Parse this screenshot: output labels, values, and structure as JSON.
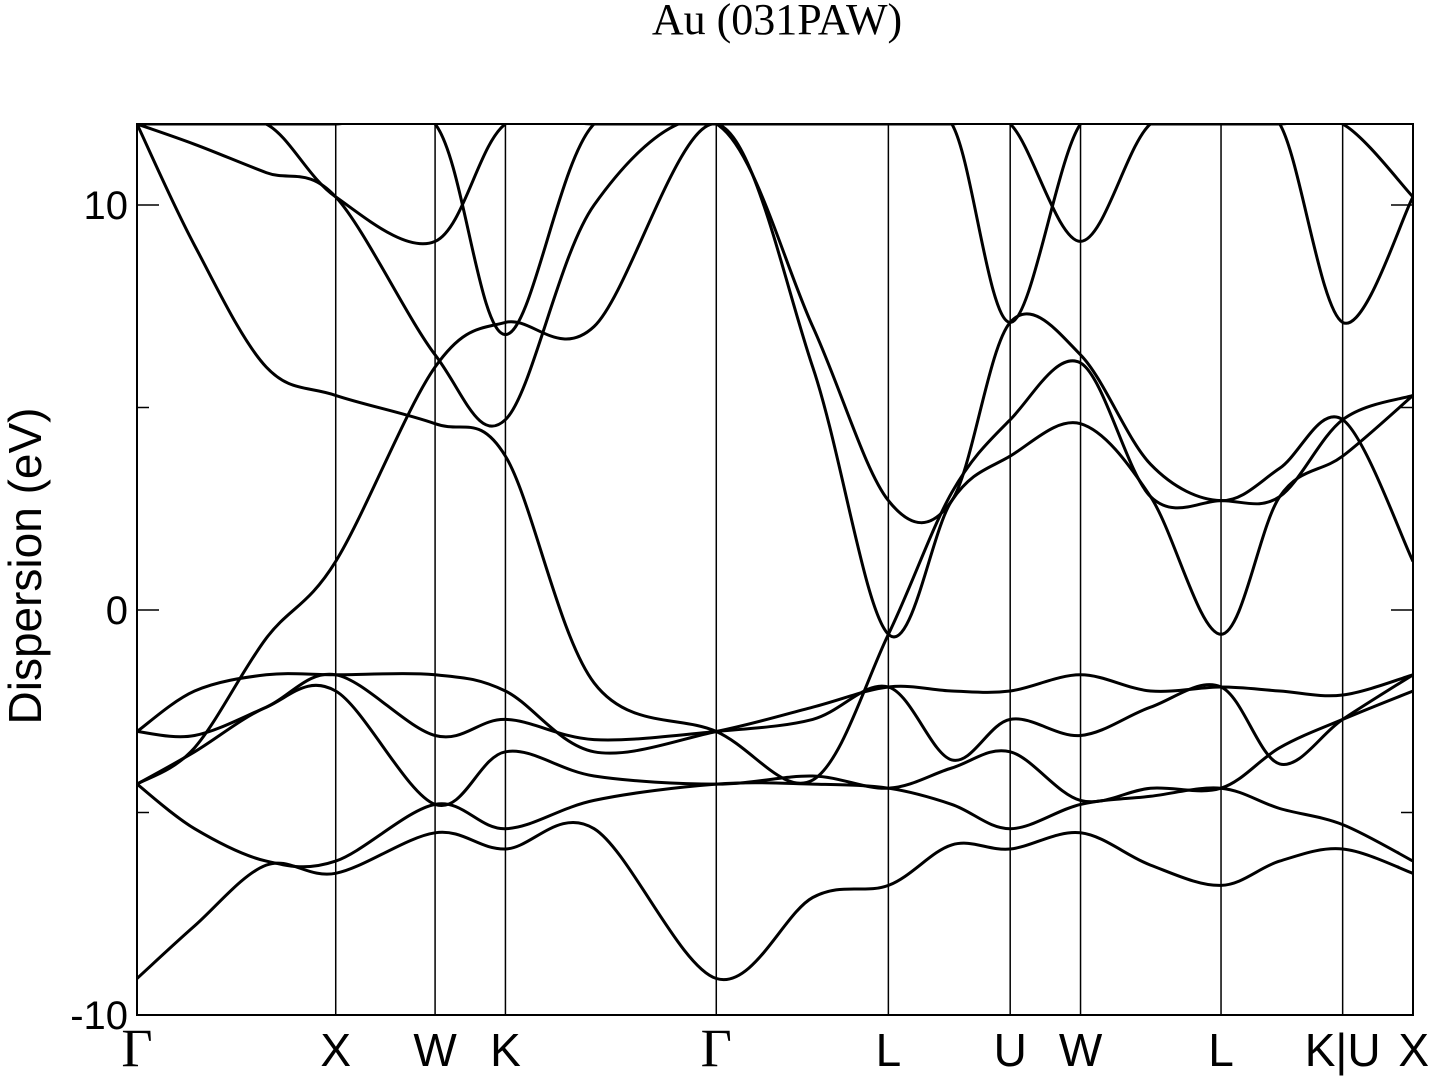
{
  "chart_data": {
    "type": "line",
    "title": "Au (031PAW)",
    "ylabel": "Dispersion (eV)",
    "xlabel": "",
    "ylim": [
      -10,
      12
    ],
    "yticks": [
      {
        "value": -10,
        "label": "-10"
      },
      {
        "value": 0,
        "label": "0"
      },
      {
        "value": 10,
        "label": "10"
      }
    ],
    "yminor_ticks": [
      -5,
      5
    ],
    "grid": false,
    "legend": "none",
    "line_color": "#000000",
    "k_points": [
      {
        "x": 0.0,
        "label": "Γ"
      },
      {
        "x": 1.0,
        "label": "X"
      },
      {
        "x": 1.5,
        "label": "W"
      },
      {
        "x": 1.854,
        "label": "K"
      },
      {
        "x": 2.915,
        "label": "Γ"
      },
      {
        "x": 3.781,
        "label": "L"
      },
      {
        "x": 4.394,
        "label": "U"
      },
      {
        "x": 4.748,
        "label": "W"
      },
      {
        "x": 5.455,
        "label": "L"
      },
      {
        "x": 6.067,
        "label": "K|U"
      },
      {
        "x": 6.421,
        "label": "X"
      }
    ],
    "x": [
      0.0,
      0.29,
      0.65,
      1.0,
      1.5,
      1.854,
      2.3,
      2.915,
      3.4,
      3.781,
      4.1,
      4.394,
      4.748,
      5.1,
      5.455,
      5.75,
      6.067,
      6.421
    ],
    "series": [
      {
        "values": [
          -9.1,
          -7.8,
          -6.3,
          -6.5,
          -5.5,
          -5.9,
          -5.4,
          -9.1,
          -7.1,
          -6.8,
          -5.8,
          -5.9,
          -5.5,
          -6.3,
          -6.8,
          -6.2,
          -5.9,
          -6.5
        ]
      },
      {
        "values": [
          -4.3,
          -5.4,
          -6.2,
          -6.2,
          -4.8,
          -5.4,
          -4.7,
          -4.3,
          -4.3,
          -4.4,
          -4.8,
          -5.4,
          -4.8,
          -4.6,
          -4.4,
          -4.9,
          -5.3,
          -6.2
        ]
      },
      {
        "values": [
          -4.3,
          -3.5,
          -2.4,
          -2.0,
          -4.8,
          -3.5,
          -4.1,
          -4.3,
          -4.1,
          -4.4,
          -3.9,
          -3.5,
          -4.7,
          -4.4,
          -4.4,
          -3.4,
          -2.7,
          -2.0
        ]
      },
      {
        "values": [
          -3.0,
          -3.1,
          -2.4,
          -1.6,
          -3.1,
          -2.7,
          -3.2,
          -3.0,
          -2.7,
          -1.9,
          -3.7,
          -2.7,
          -3.1,
          -2.4,
          -1.9,
          -3.8,
          -2.7,
          -1.6
        ]
      },
      {
        "values": [
          -3.0,
          -2.0,
          -1.6,
          -1.6,
          -1.6,
          -2.0,
          -3.5,
          -3.0,
          -2.4,
          -1.9,
          -2.0,
          -2.0,
          -1.6,
          -2.0,
          -1.9,
          -2.0,
          -2.1,
          -1.6
        ]
      },
      {
        "values": [
          -4.3,
          -3.4,
          -0.7,
          1.2,
          6.0,
          7.1,
          7.0,
          12.0,
          6.0,
          -0.6,
          2.7,
          3.8,
          4.6,
          2.8,
          -0.6,
          2.8,
          3.8,
          5.3
        ]
      },
      {
        "values": [
          12.0,
          9.0,
          6.0,
          5.3,
          4.6,
          3.8,
          -1.8,
          -3.0,
          -4.2,
          -0.6,
          2.9,
          4.7,
          6.1,
          2.8,
          2.7,
          2.8,
          4.7,
          5.3
        ]
      },
      {
        "values": [
          12.0,
          11.5,
          10.8,
          10.2,
          6.3,
          4.7,
          10.0,
          12.0,
          7.0,
          2.7,
          2.7,
          7.1,
          6.3,
          3.6,
          2.7,
          3.5,
          4.7,
          1.2
        ]
      },
      {
        "values": [
          12.0,
          12.0,
          12.0,
          10.2,
          9.1,
          12.0,
          12.0,
          12.0,
          12.0,
          12.0,
          12.0,
          7.1,
          12.0,
          12.0,
          12.0,
          12.0,
          12.0,
          10.2
        ]
      },
      {
        "values": [
          12.0,
          12.0,
          12.0,
          12.0,
          12.0,
          6.8,
          12.0,
          12.0,
          12.0,
          12.0,
          12.0,
          12.0,
          9.1,
          12.0,
          12.0,
          12.0,
          7.1,
          10.2
        ]
      }
    ]
  }
}
